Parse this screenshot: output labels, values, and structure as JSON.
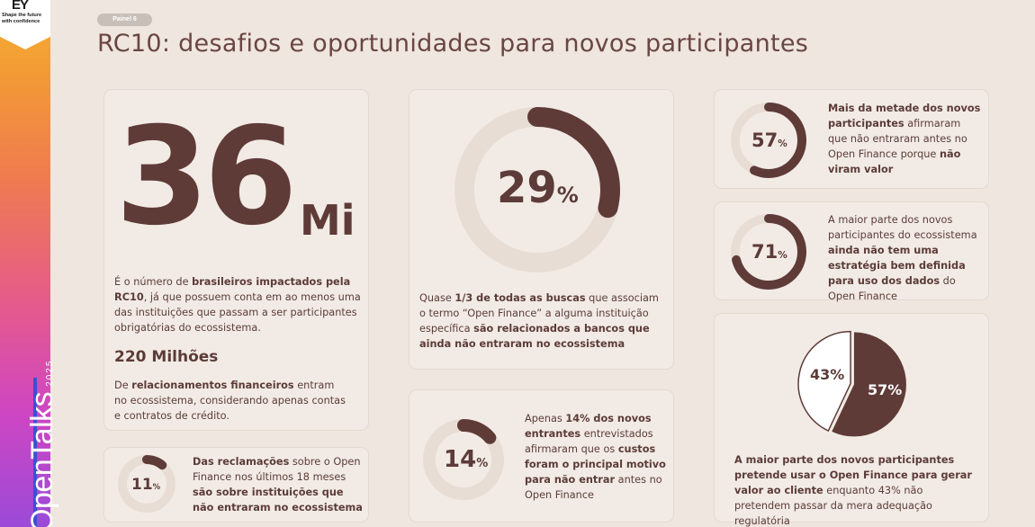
{
  "brand": {
    "logo_text": "EY",
    "tagline": "Shape the future with confidence",
    "event_name": "OpenTalks",
    "event_year": "2025"
  },
  "header": {
    "panel_label": "Painel 6",
    "title": "RC10: desafios e oportunidades para novos participantes"
  },
  "colors": {
    "primary": "#5f3b38",
    "ring_track": "#e8ddd4",
    "background": "#efe6df",
    "card": "#f2ebe5"
  },
  "card_36": {
    "big_number": "36",
    "unit": "Mi",
    "desc_prefix": "É o número de ",
    "desc_bold1": "brasileiros impactados pela RC10",
    "desc_suffix": ", já que possuem conta em ao menos uma das instituições que passam a ser participantes obrigatórias do ecossistema.",
    "sub_heading": "220 Milhões",
    "sub_prefix": "De ",
    "sub_bold": "relacionamentos financeiros",
    "sub_suffix": " entram no ecossistema, considerando apenas contas e contratos de crédito."
  },
  "card_11": {
    "value": 11,
    "number": "11",
    "pct": "%",
    "bold1": "Das reclamações",
    "text1": " sobre o Open Finance nos últimos 18 meses ",
    "bold2": "são sobre instituições que não entraram no ecossistema"
  },
  "card_29": {
    "value": 29,
    "number": "29",
    "pct": "%",
    "prefix": "Quase ",
    "bold1": "1/3 de todas as buscas",
    "text1": " que associam o termo “Open Finance” a alguma instituição específica ",
    "bold2": "são relacionados a bancos que ainda não entraram no ecossistema"
  },
  "card_14": {
    "value": 14,
    "number": "14",
    "pct": "%",
    "prefix": "Apenas ",
    "bold1": "14% dos novos entrantes",
    "text1": " entrevistados afirmaram que os ",
    "bold2": "custos foram o principal motivo para não entrar",
    "suffix": " antes no Open Finance"
  },
  "card_57": {
    "value": 57,
    "number": "57",
    "pct": "%",
    "bold1": "Mais da metade dos novos participantes",
    "text1": " afirmaram que não entraram antes no Open Finance porque ",
    "bold2": "não viram valor"
  },
  "card_71": {
    "value": 71,
    "number": "71",
    "pct": "%",
    "prefix": "A maior parte dos novos participantes do ecossistema ",
    "bold1": "ainda não tem uma estratégia bem definida para uso dos dados",
    "suffix": " do Open Finance"
  },
  "card_pie": {
    "slice_dark_label": "57%",
    "slice_light_label": "43%",
    "bold1": "A maior parte dos novos participantes pretende usar o Open Finance para gerar valor ao cliente",
    "text1": " enquanto 43% não pretendem passar da mera adequação regulatória"
  },
  "chart_data": [
    {
      "type": "pie",
      "categories": [
        "11%",
        ""
      ],
      "values": [
        11,
        89
      ]
    },
    {
      "type": "pie",
      "categories": [
        "29%",
        ""
      ],
      "values": [
        29,
        71
      ]
    },
    {
      "type": "pie",
      "categories": [
        "14%",
        ""
      ],
      "values": [
        14,
        86
      ]
    },
    {
      "type": "pie",
      "categories": [
        "57%",
        ""
      ],
      "values": [
        57,
        43
      ]
    },
    {
      "type": "pie",
      "categories": [
        "71%",
        ""
      ],
      "values": [
        71,
        29
      ]
    },
    {
      "type": "pie",
      "categories": [
        "57%",
        "43%"
      ],
      "values": [
        57,
        43
      ]
    }
  ]
}
